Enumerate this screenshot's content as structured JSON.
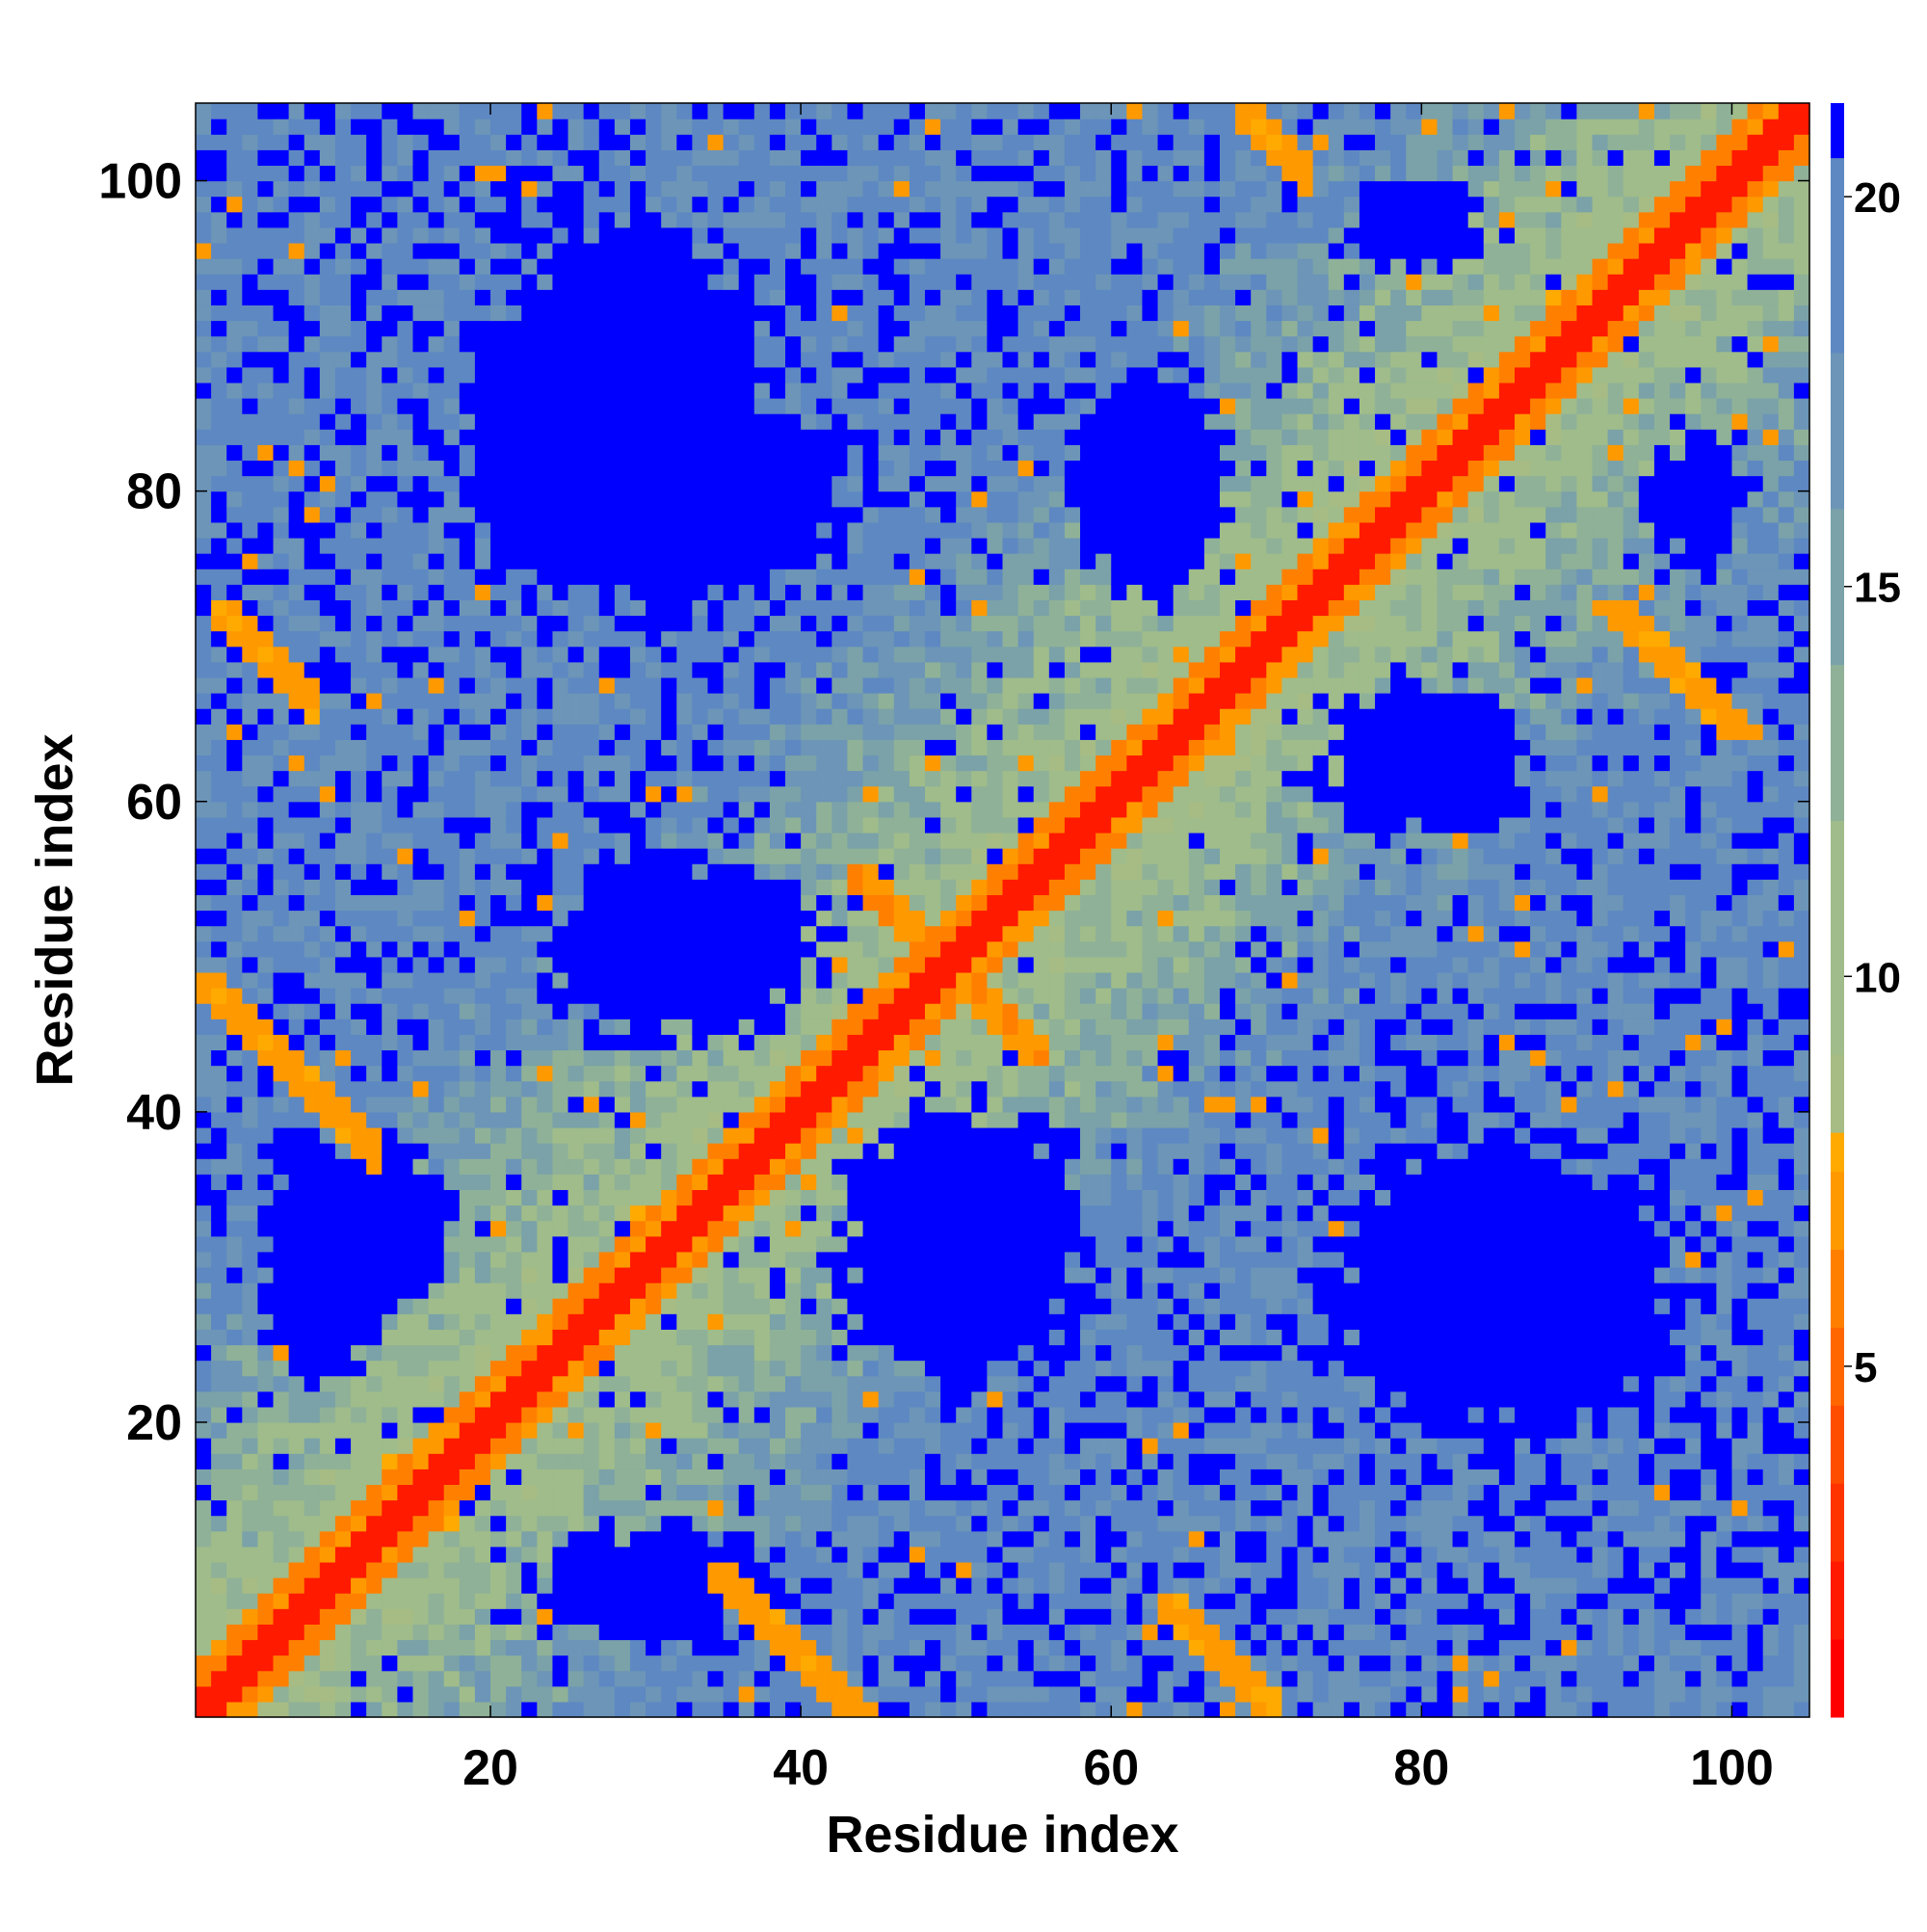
{
  "chart_data": {
    "type": "heatmap",
    "title": "",
    "xlabel": "Residue index",
    "ylabel": "Residue index",
    "xlim": [
      1,
      105
    ],
    "ylim": [
      1,
      105
    ],
    "x_ticks": [
      {
        "value": 20,
        "label": "20"
      },
      {
        "value": 40,
        "label": "40"
      },
      {
        "value": 60,
        "label": "60"
      },
      {
        "value": 80,
        "label": "80"
      },
      {
        "value": 100,
        "label": "100"
      }
    ],
    "y_ticks": [
      {
        "value": 20,
        "label": "20"
      },
      {
        "value": 40,
        "label": "40"
      },
      {
        "value": 60,
        "label": "60"
      },
      {
        "value": 80,
        "label": "80"
      },
      {
        "value": 100,
        "label": "100"
      }
    ],
    "colorbar": {
      "range": [
        0.5,
        21.2
      ],
      "ticks": [
        {
          "value": 5,
          "label": "5"
        },
        {
          "value": 10,
          "label": "10"
        },
        {
          "value": 15,
          "label": "15"
        },
        {
          "value": 20,
          "label": "20"
        }
      ],
      "bands": [
        {
          "from": 0.5,
          "to": 1.5,
          "color": "#ff0000"
        },
        {
          "from": 1.5,
          "to": 2.5,
          "color": "#ff1a00"
        },
        {
          "from": 2.5,
          "to": 3.5,
          "color": "#ff3300"
        },
        {
          "from": 3.5,
          "to": 4.5,
          "color": "#ff4d00"
        },
        {
          "from": 4.5,
          "to": 5.5,
          "color": "#ff6600"
        },
        {
          "from": 5.5,
          "to": 6.5,
          "color": "#ff8000"
        },
        {
          "from": 6.5,
          "to": 7.5,
          "color": "#ff9900"
        },
        {
          "from": 7.5,
          "to": 8.0,
          "color": "#ffaa00"
        },
        {
          "from": 8.0,
          "to": 9.0,
          "color": "#a7bc85"
        },
        {
          "from": 9.0,
          "to": 12.0,
          "color": "#9fbc8a"
        },
        {
          "from": 12.0,
          "to": 14.0,
          "color": "#8fb198"
        },
        {
          "from": 14.0,
          "to": 16.0,
          "color": "#7aa2a8"
        },
        {
          "from": 16.0,
          "to": 18.0,
          "color": "#6c95b8"
        },
        {
          "from": 18.0,
          "to": 20.5,
          "color": "#5e88c2"
        },
        {
          "from": 20.5,
          "to": 21.2,
          "color": "#0000ff"
        }
      ]
    },
    "grid": false,
    "legend": "none",
    "n_residues": 104,
    "diagonal_contacts": {
      "main": 1.5,
      "near": 5.5
    },
    "secondary_structure_bands": [
      {
        "i_range": [
          1,
          12
        ],
        "j_range": [
          36,
          48
        ],
        "value": 6.5
      },
      {
        "i_range": [
          2,
          8
        ],
        "j_range": [
          64,
          72
        ],
        "value": 6.5
      },
      {
        "i_range": [
          43,
          55
        ],
        "j_range": [
          43,
          55
        ],
        "value": 6.0
      },
      {
        "i_range": [
          68,
          72
        ],
        "j_range": [
          96,
          104
        ],
        "value": 6.5
      },
      {
        "i_range": [
          92,
          104
        ],
        "j_range": [
          64,
          72
        ],
        "value": 6.5
      },
      {
        "i_range": [
          34,
          45
        ],
        "j_range": [
          1,
          10
        ],
        "value": 6.5
      },
      {
        "i_range": [
          63,
          70
        ],
        "j_range": [
          1,
          8
        ],
        "value": 6.5
      }
    ],
    "far_blocks": [
      {
        "i_center": 30,
        "j_center": 80,
        "i_half": 13,
        "j_half": 8,
        "value": 21
      },
      {
        "i_center": 12,
        "j_center": 32,
        "i_half": 5,
        "j_half": 6,
        "value": 21
      },
      {
        "i_center": 32,
        "j_center": 50,
        "i_half": 9,
        "j_half": 6,
        "value": 21
      },
      {
        "i_center": 30,
        "j_center": 9,
        "i_half": 8,
        "j_half": 4,
        "value": 21
      },
      {
        "i_center": 50,
        "j_center": 31,
        "i_half": 8,
        "j_half": 9,
        "value": 21
      },
      {
        "i_center": 62,
        "j_center": 80,
        "i_half": 5,
        "j_half": 7,
        "value": 21
      },
      {
        "i_center": 80,
        "j_center": 62,
        "i_half": 7,
        "j_half": 5,
        "value": 21
      },
      {
        "i_center": 85,
        "j_center": 28,
        "i_half": 12,
        "j_half": 10,
        "value": 21
      },
      {
        "i_center": 79,
        "j_center": 97,
        "i_half": 4,
        "j_half": 3,
        "value": 21
      },
      {
        "i_center": 97,
        "j_center": 79,
        "i_half": 3,
        "j_half": 4,
        "value": 21
      },
      {
        "i_center": 28,
        "j_center": 85,
        "i_half": 10,
        "j_half": 12,
        "value": 21
      },
      {
        "i_center": 9,
        "j_center": 30,
        "i_half": 4,
        "j_half": 8,
        "value": 21
      }
    ]
  }
}
